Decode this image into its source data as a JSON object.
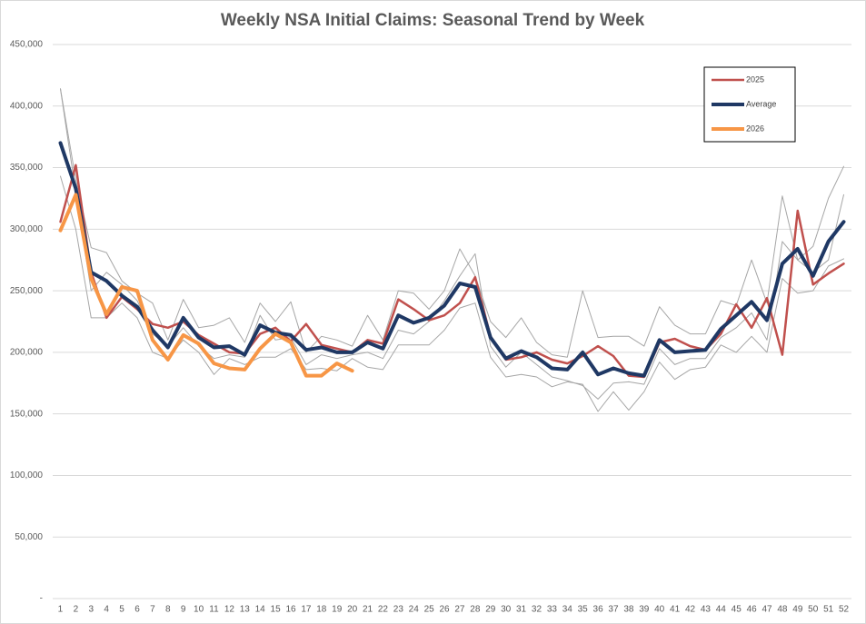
{
  "chart_data": {
    "type": "line",
    "title": "Weekly NSA Initial Claims: Seasonal Trend by Week",
    "x": [
      1,
      2,
      3,
      4,
      5,
      6,
      7,
      8,
      9,
      10,
      11,
      12,
      13,
      14,
      15,
      16,
      17,
      18,
      19,
      20,
      21,
      22,
      23,
      24,
      25,
      26,
      27,
      28,
      29,
      30,
      31,
      32,
      33,
      34,
      35,
      36,
      37,
      38,
      39,
      40,
      41,
      42,
      43,
      44,
      45,
      46,
      47,
      48,
      49,
      50,
      51,
      52
    ],
    "xlim": [
      0.5,
      52.5
    ],
    "ylim": [
      0,
      450000
    ],
    "yticks": [
      {
        "value": 0,
        "label": "-"
      },
      {
        "value": 50000,
        "label": "50,000"
      },
      {
        "value": 100000,
        "label": "100,000"
      },
      {
        "value": 150000,
        "label": "150,000"
      },
      {
        "value": 200000,
        "label": "200,000"
      },
      {
        "value": 250000,
        "label": "250,000"
      },
      {
        "value": 300000,
        "label": "300,000"
      },
      {
        "value": 350000,
        "label": "350,000"
      },
      {
        "value": 400000,
        "label": "400,000"
      },
      {
        "value": 450000,
        "label": "450,000"
      }
    ],
    "grid": true,
    "legend": "top-right",
    "series": [
      {
        "color": "#a6a6a6",
        "values": [
          414000,
          340000,
          285000,
          281000,
          258000,
          248000,
          240000,
          210000,
          243000,
          220000,
          222000,
          228000,
          208000,
          240000,
          225000,
          241000,
          200000,
          213000,
          210000,
          205000,
          230000,
          210000,
          250000,
          248000,
          235000,
          250000,
          284000,
          262000,
          225000,
          212000,
          228000,
          208000,
          198000,
          196000,
          250000,
          212000,
          213000,
          213000,
          205000,
          237000,
          222000,
          215000,
          215000,
          242000,
          238000,
          275000,
          240000,
          327000,
          275000,
          286000,
          325000,
          351000
        ]
      },
      {
        "color": "#a6a6a6",
        "values": [
          343000,
          300000,
          228000,
          228000,
          240000,
          228000,
          200000,
          195000,
          210000,
          200000,
          182000,
          195000,
          190000,
          196000,
          196000,
          203000,
          186000,
          187000,
          185000,
          195000,
          188000,
          186000,
          206000,
          206000,
          206000,
          218000,
          236000,
          240000,
          196000,
          180000,
          182000,
          180000,
          172000,
          176000,
          174000,
          152000,
          168000,
          153000,
          168000,
          192000,
          178000,
          186000,
          188000,
          206000,
          200000,
          213000,
          200000,
          260000,
          248000,
          250000,
          270000,
          276000
        ]
      },
      {
        "color": "#a6a6a6",
        "values": [
          414000,
          330000,
          250000,
          265000,
          255000,
          242000,
          215000,
          205000,
          220000,
          205000,
          195000,
          198000,
          196000,
          230000,
          210000,
          212000,
          190000,
          198000,
          195000,
          198000,
          200000,
          195000,
          218000,
          215000,
          225000,
          242000,
          262000,
          280000,
          205000,
          188000,
          200000,
          190000,
          180000,
          177000,
          173000,
          162000,
          175000,
          176000,
          174000,
          203000,
          190000,
          195000,
          195000,
          212000,
          220000,
          232000,
          210000,
          290000,
          275000,
          265000,
          275000,
          328000
        ]
      },
      {
        "name": "2025",
        "color": "#c0504d",
        "values": [
          306000,
          352000,
          265000,
          228000,
          245000,
          235000,
          223000,
          220000,
          225000,
          214000,
          207000,
          200000,
          199000,
          215000,
          220000,
          209000,
          223000,
          206000,
          203000,
          200000,
          210000,
          207000,
          243000,
          235000,
          226000,
          230000,
          240000,
          261000,
          213000,
          194000,
          196000,
          200000,
          194000,
          191000,
          197000,
          205000,
          197000,
          181000,
          180000,
          208000,
          211000,
          205000,
          202000,
          215000,
          239000,
          220000,
          244000,
          198000,
          315000,
          255000,
          264000,
          272000
        ]
      },
      {
        "name": "Average",
        "color": "#1f3864",
        "values": [
          370000,
          333000,
          265000,
          258000,
          246000,
          237000,
          218000,
          204000,
          228000,
          212000,
          204000,
          205000,
          198000,
          222000,
          216000,
          214000,
          202000,
          204000,
          200000,
          200000,
          208000,
          203000,
          230000,
          224000,
          228000,
          238000,
          256000,
          253000,
          212000,
          195000,
          201000,
          196000,
          187000,
          186000,
          200000,
          182000,
          187000,
          183000,
          181000,
          210000,
          200000,
          201000,
          202000,
          219000,
          230000,
          241000,
          226000,
          272000,
          284000,
          262000,
          290000,
          306000
        ]
      },
      {
        "name": "2026",
        "color": "#f79646",
        "values": [
          299000,
          328000,
          260000,
          231000,
          253000,
          250000,
          210000,
          194000,
          214000,
          207000,
          191000,
          187000,
          186000,
          203000,
          215000,
          208000,
          181000,
          181000,
          191000,
          185000,
          null,
          null,
          null,
          null,
          null,
          null,
          null,
          null,
          null,
          null,
          null,
          null,
          null,
          null,
          null,
          null,
          null,
          null,
          null,
          null,
          null,
          null,
          null,
          null,
          null,
          null,
          null,
          null,
          null,
          null,
          null,
          null
        ]
      }
    ]
  }
}
